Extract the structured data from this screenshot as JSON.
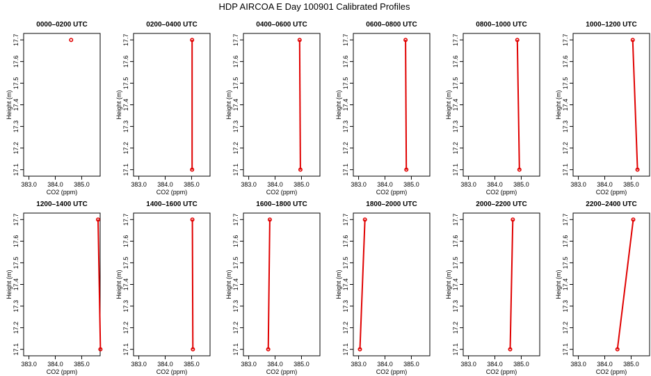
{
  "figure": {
    "title": "HDP AIRCOA E  Day 100901  Calibrated Profiles"
  },
  "chart_data": [
    {
      "type": "line",
      "title": "0000–0200 UTC",
      "xlabel": "CO2 (ppm)",
      "ylabel": "Height (m)",
      "xlim": [
        382.8,
        385.7
      ],
      "ylim": [
        17.07,
        17.73
      ],
      "xticks": [
        "383.0",
        "384.0",
        "385.0"
      ],
      "yticks": [
        "17.1",
        "17.2",
        "17.3",
        "17.4",
        "17.5",
        "17.6",
        "17.7"
      ],
      "points": [
        {
          "x": 384.6,
          "y": 17.7
        }
      ]
    },
    {
      "type": "line",
      "title": "0200–0400 UTC",
      "xlabel": "CO2 (ppm)",
      "ylabel": "Height (m)",
      "xlim": [
        382.8,
        385.7
      ],
      "ylim": [
        17.07,
        17.73
      ],
      "xticks": [
        "383.0",
        "384.0",
        "385.0"
      ],
      "yticks": [
        "17.1",
        "17.2",
        "17.3",
        "17.4",
        "17.5",
        "17.6",
        "17.7"
      ],
      "points": [
        {
          "x": 385.02,
          "y": 17.1
        },
        {
          "x": 385.02,
          "y": 17.7
        }
      ]
    },
    {
      "type": "line",
      "title": "0400–0600 UTC",
      "xlabel": "CO2 (ppm)",
      "ylabel": "Height (m)",
      "xlim": [
        382.8,
        385.7
      ],
      "ylim": [
        17.07,
        17.73
      ],
      "xticks": [
        "383.0",
        "384.0",
        "385.0"
      ],
      "yticks": [
        "17.1",
        "17.2",
        "17.3",
        "17.4",
        "17.5",
        "17.6",
        "17.7"
      ],
      "points": [
        {
          "x": 384.96,
          "y": 17.1
        },
        {
          "x": 384.93,
          "y": 17.7
        }
      ]
    },
    {
      "type": "line",
      "title": "0600–0800 UTC",
      "xlabel": "CO2 (ppm)",
      "ylabel": "Height (m)",
      "xlim": [
        382.8,
        385.7
      ],
      "ylim": [
        17.07,
        17.73
      ],
      "xticks": [
        "383.0",
        "384.0",
        "385.0"
      ],
      "yticks": [
        "17.1",
        "17.2",
        "17.3",
        "17.4",
        "17.5",
        "17.6",
        "17.7"
      ],
      "points": [
        {
          "x": 384.81,
          "y": 17.1
        },
        {
          "x": 384.78,
          "y": 17.7
        }
      ]
    },
    {
      "type": "line",
      "title": "0800–1000 UTC",
      "xlabel": "CO2 (ppm)",
      "ylabel": "Height (m)",
      "xlim": [
        382.8,
        385.7
      ],
      "ylim": [
        17.07,
        17.73
      ],
      "xticks": [
        "383.0",
        "384.0",
        "385.0"
      ],
      "yticks": [
        "17.1",
        "17.2",
        "17.3",
        "17.4",
        "17.5",
        "17.6",
        "17.7"
      ],
      "points": [
        {
          "x": 384.93,
          "y": 17.1
        },
        {
          "x": 384.85,
          "y": 17.7
        }
      ]
    },
    {
      "type": "line",
      "title": "1000–1200 UTC",
      "xlabel": "CO2 (ppm)",
      "ylabel": "Height (m)",
      "xlim": [
        382.8,
        385.7
      ],
      "ylim": [
        17.07,
        17.73
      ],
      "xticks": [
        "383.0",
        "384.0",
        "385.0"
      ],
      "yticks": [
        "17.1",
        "17.2",
        "17.3",
        "17.4",
        "17.5",
        "17.6",
        "17.7"
      ],
      "points": [
        {
          "x": 385.24,
          "y": 17.1
        },
        {
          "x": 385.06,
          "y": 17.7
        }
      ]
    },
    {
      "type": "line",
      "title": "1200–1400 UTC",
      "xlabel": "CO2 (ppm)",
      "ylabel": "Height (m)",
      "xlim": [
        382.8,
        385.7
      ],
      "ylim": [
        17.07,
        17.73
      ],
      "xticks": [
        "383.0",
        "384.0",
        "385.0"
      ],
      "yticks": [
        "17.1",
        "17.2",
        "17.3",
        "17.4",
        "17.5",
        "17.6",
        "17.7"
      ],
      "points": [
        {
          "x": 385.71,
          "y": 17.1
        },
        {
          "x": 385.62,
          "y": 17.7
        }
      ]
    },
    {
      "type": "line",
      "title": "1400–1600 UTC",
      "xlabel": "CO2 (ppm)",
      "ylabel": "Height (m)",
      "xlim": [
        382.8,
        385.7
      ],
      "ylim": [
        17.07,
        17.73
      ],
      "xticks": [
        "383.0",
        "384.0",
        "385.0"
      ],
      "yticks": [
        "17.1",
        "17.2",
        "17.3",
        "17.4",
        "17.5",
        "17.6",
        "17.7"
      ],
      "points": [
        {
          "x": 385.05,
          "y": 17.1
        },
        {
          "x": 385.03,
          "y": 17.7
        }
      ]
    },
    {
      "type": "line",
      "title": "1600–1800 UTC",
      "xlabel": "CO2 (ppm)",
      "ylabel": "Height (m)",
      "xlim": [
        382.8,
        385.7
      ],
      "ylim": [
        17.07,
        17.73
      ],
      "xticks": [
        "383.0",
        "384.0",
        "385.0"
      ],
      "yticks": [
        "17.1",
        "17.2",
        "17.3",
        "17.4",
        "17.5",
        "17.6",
        "17.7"
      ],
      "points": [
        {
          "x": 383.74,
          "y": 17.1
        },
        {
          "x": 383.8,
          "y": 17.7
        }
      ]
    },
    {
      "type": "line",
      "title": "1800–2000 UTC",
      "xlabel": "CO2 (ppm)",
      "ylabel": "Height (m)",
      "xlim": [
        382.8,
        385.7
      ],
      "ylim": [
        17.07,
        17.73
      ],
      "xticks": [
        "383.0",
        "384.0",
        "385.0"
      ],
      "yticks": [
        "17.1",
        "17.2",
        "17.3",
        "17.4",
        "17.5",
        "17.6",
        "17.7"
      ],
      "points": [
        {
          "x": 383.05,
          "y": 17.1
        },
        {
          "x": 383.24,
          "y": 17.7
        }
      ]
    },
    {
      "type": "line",
      "title": "2000–2200 UTC",
      "xlabel": "CO2 (ppm)",
      "ylabel": "Height (m)",
      "xlim": [
        382.8,
        385.7
      ],
      "ylim": [
        17.07,
        17.73
      ],
      "xticks": [
        "383.0",
        "384.0",
        "385.0"
      ],
      "yticks": [
        "17.1",
        "17.2",
        "17.3",
        "17.4",
        "17.5",
        "17.6",
        "17.7"
      ],
      "points": [
        {
          "x": 384.58,
          "y": 17.1
        },
        {
          "x": 384.68,
          "y": 17.7
        }
      ]
    },
    {
      "type": "line",
      "title": "2200–2400 UTC",
      "xlabel": "CO2 (ppm)",
      "ylabel": "Height (m)",
      "xlim": [
        382.8,
        385.7
      ],
      "ylim": [
        17.07,
        17.73
      ],
      "xticks": [
        "383.0",
        "384.0",
        "385.0"
      ],
      "yticks": [
        "17.1",
        "17.2",
        "17.3",
        "17.4",
        "17.5",
        "17.6",
        "17.7"
      ],
      "points": [
        {
          "x": 384.48,
          "y": 17.1
        },
        {
          "x": 385.08,
          "y": 17.7
        }
      ]
    }
  ],
  "colors": {
    "series": "#e00000",
    "axes": "#000000",
    "background": "#ffffff"
  }
}
